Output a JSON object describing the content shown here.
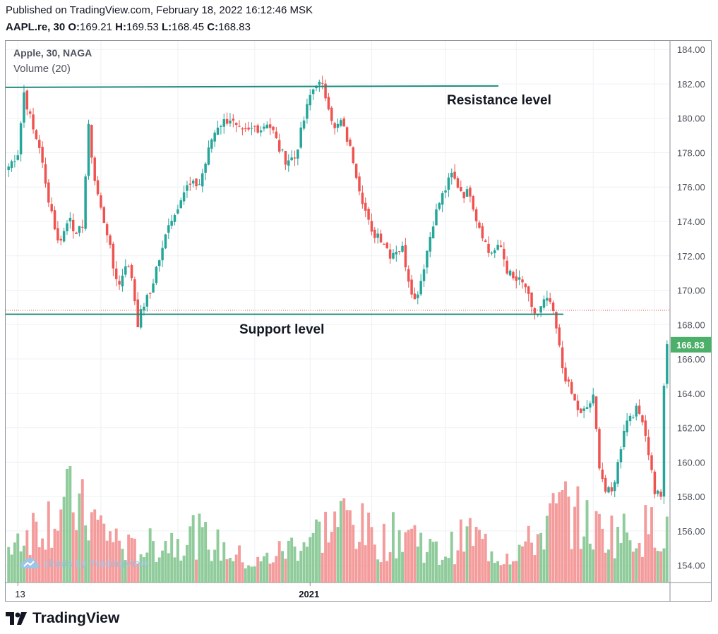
{
  "header": {
    "published": "Published on TradingView.com, February 18, 2022 16:12:46 MSK",
    "symbol": "AAPL.re, 30",
    "o_label": "O:",
    "o_value": "169.21",
    "h_label": "H:",
    "h_value": "169.53",
    "l_label": "L:",
    "l_value": "168.45",
    "c_label": "C:",
    "c_value": "168.83"
  },
  "legend": {
    "instrument": "Apple, 30, NAGA",
    "volume": "Volume (20)"
  },
  "watermark": "charts by TradingView",
  "brand": "TradingView",
  "colors": {
    "up": "#26a69a",
    "up_volume": "#7cc38a",
    "down": "#ef5350",
    "down_volume": "#f28b8b",
    "level_line": "#1e8c7e",
    "last_price": "#4caf6a",
    "dotted_line": "#e05050",
    "grid": "#eef0f3"
  },
  "chart_data": {
    "type": "candlestick",
    "ylim": [
      153.0,
      184.5
    ],
    "y_ticks": [
      "184.00",
      "182.00",
      "180.00",
      "178.00",
      "176.00",
      "174.00",
      "172.00",
      "170.00",
      "168.00",
      "166.00",
      "164.00",
      "162.00",
      "160.00",
      "158.00",
      "156.00",
      "154.00"
    ],
    "x_ticks": [
      {
        "label": "13",
        "bold": false,
        "index": 3
      },
      {
        "label": "2021",
        "bold": true,
        "index": 98
      }
    ],
    "last_price": "166.83",
    "annotations": [
      {
        "text": "Resistance level",
        "price": 181.8
      },
      {
        "text": "Support level",
        "price": 168.6
      }
    ],
    "close_path": [
      [
        0,
        177.2
      ],
      [
        3,
        178.0
      ],
      [
        5,
        181.5
      ],
      [
        8,
        179.3
      ],
      [
        10,
        178.4
      ],
      [
        12,
        176.1
      ],
      [
        14,
        174.6
      ],
      [
        16,
        172.8
      ],
      [
        18,
        173.4
      ],
      [
        20,
        174.4
      ],
      [
        22,
        173.0
      ],
      [
        24,
        173.9
      ],
      [
        26,
        179.4
      ],
      [
        28,
        176.4
      ],
      [
        30,
        174.7
      ],
      [
        32,
        173.4
      ],
      [
        34,
        171.3
      ],
      [
        36,
        170.3
      ],
      [
        38,
        171.6
      ],
      [
        40,
        170.8
      ],
      [
        42,
        168.1
      ],
      [
        44,
        169.2
      ],
      [
        46,
        169.8
      ],
      [
        48,
        171.3
      ],
      [
        50,
        172.3
      ],
      [
        52,
        174.0
      ],
      [
        54,
        174.4
      ],
      [
        56,
        175.5
      ],
      [
        58,
        176.0
      ],
      [
        62,
        176.2
      ],
      [
        64,
        177.4
      ],
      [
        66,
        178.8
      ],
      [
        68,
        179.6
      ],
      [
        72,
        180.0
      ],
      [
        74,
        179.4
      ],
      [
        76,
        179.1
      ],
      [
        78,
        179.2
      ],
      [
        80,
        179.5
      ],
      [
        82,
        179.4
      ],
      [
        84,
        179.8
      ],
      [
        86,
        179.2
      ],
      [
        88,
        178.2
      ],
      [
        90,
        177.6
      ],
      [
        93,
        177.7
      ],
      [
        96,
        179.9
      ],
      [
        98,
        181.3
      ],
      [
        100,
        182.1
      ],
      [
        102,
        181.8
      ],
      [
        104,
        180.8
      ],
      [
        106,
        179.3
      ],
      [
        108,
        179.8
      ],
      [
        110,
        178.8
      ],
      [
        112,
        177.6
      ],
      [
        114,
        176.0
      ],
      [
        116,
        174.6
      ],
      [
        118,
        173.2
      ],
      [
        120,
        173.3
      ],
      [
        122,
        172.8
      ],
      [
        124,
        172.1
      ],
      [
        126,
        172.4
      ],
      [
        128,
        172.4
      ],
      [
        130,
        170.7
      ],
      [
        132,
        169.4
      ],
      [
        134,
        170.6
      ],
      [
        136,
        172.3
      ],
      [
        138,
        174.0
      ],
      [
        140,
        175.1
      ],
      [
        142,
        175.9
      ],
      [
        144,
        176.7
      ],
      [
        146,
        176.1
      ],
      [
        148,
        175.6
      ],
      [
        150,
        175.7
      ],
      [
        152,
        174.2
      ],
      [
        154,
        173.3
      ],
      [
        156,
        172.2
      ],
      [
        158,
        172.3
      ],
      [
        160,
        172.5
      ],
      [
        162,
        171.2
      ],
      [
        164,
        170.6
      ],
      [
        166,
        170.5
      ],
      [
        168,
        170.2
      ],
      [
        170,
        168.8
      ],
      [
        172,
        168.6
      ],
      [
        174,
        169.3
      ],
      [
        176,
        169.3
      ],
      [
        178,
        167.7
      ],
      [
        180,
        165.5
      ],
      [
        182,
        164.4
      ],
      [
        184,
        163.5
      ],
      [
        186,
        162.7
      ],
      [
        190,
        163.7
      ],
      [
        192,
        159.9
      ],
      [
        194,
        158.3
      ],
      [
        196,
        158.2
      ],
      [
        198,
        159.9
      ],
      [
        200,
        162.0
      ],
      [
        202,
        162.8
      ],
      [
        204,
        163.0
      ],
      [
        206,
        162.6
      ],
      [
        208,
        160.6
      ],
      [
        210,
        158.3
      ],
      [
        212,
        158.1
      ],
      [
        213,
        164.2
      ],
      [
        214,
        166.8
      ]
    ],
    "volume_peaks": [
      [
        0,
        0.45
      ],
      [
        20,
        0.9
      ],
      [
        40,
        0.35
      ],
      [
        60,
        0.55
      ],
      [
        80,
        0.2
      ],
      [
        100,
        0.55
      ],
      [
        110,
        0.75
      ],
      [
        120,
        0.45
      ],
      [
        130,
        0.6
      ],
      [
        140,
        0.3
      ],
      [
        150,
        0.55
      ],
      [
        160,
        0.3
      ],
      [
        170,
        0.45
      ],
      [
        180,
        0.85
      ],
      [
        190,
        0.6
      ],
      [
        200,
        0.55
      ],
      [
        214,
        0.65
      ]
    ]
  }
}
